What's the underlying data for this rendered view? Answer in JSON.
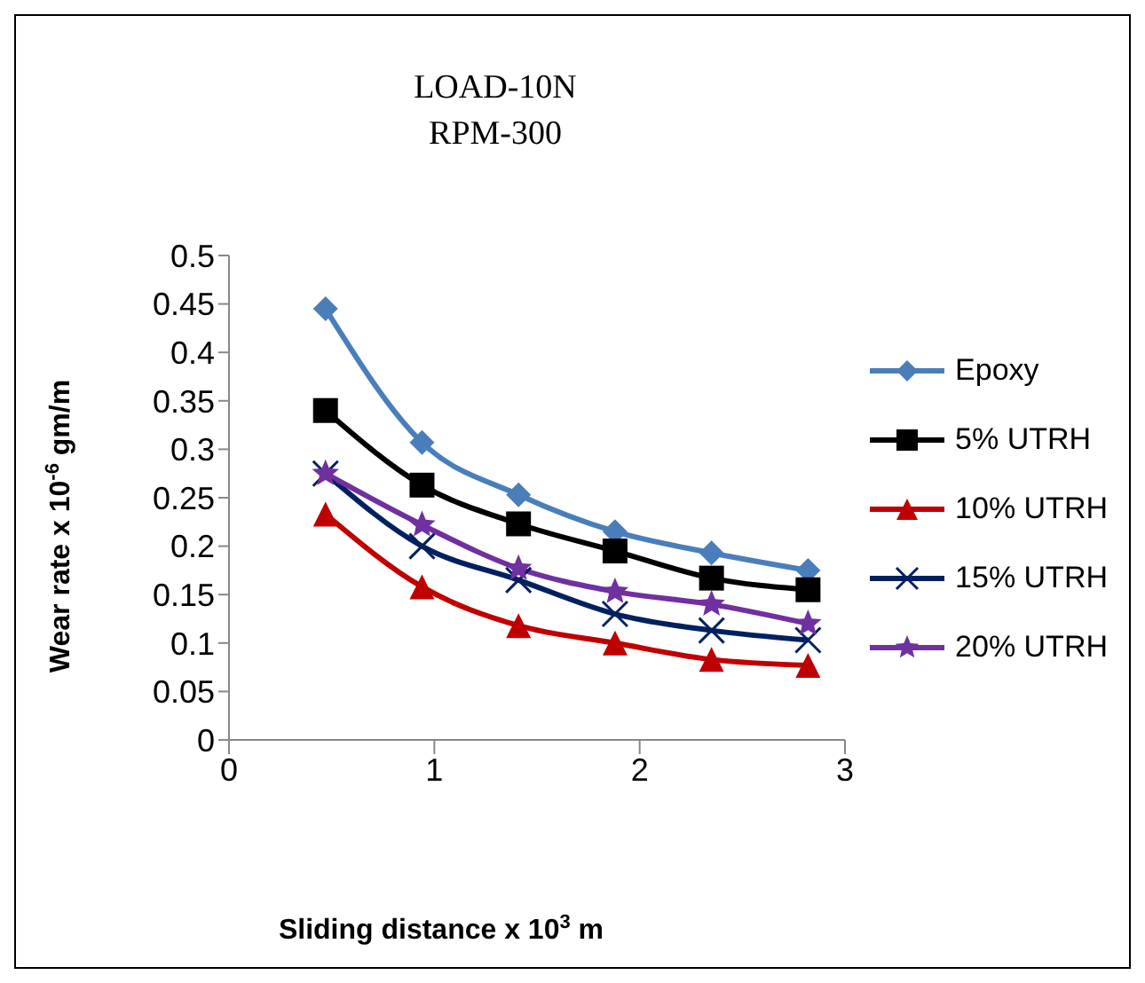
{
  "chart_data": {
    "type": "line",
    "title": "LOAD-10N\nRPM-300",
    "xlabel": "Sliding distance x 10$^{3}$ m",
    "ylabel": "Wear rate x 10$^{-6}$ gm/m",
    "x": [
      0.47,
      0.94,
      1.41,
      1.88,
      2.35,
      2.82
    ],
    "xlim": [
      0,
      3
    ],
    "xticks": [
      0,
      1,
      2,
      3
    ],
    "ylim": [
      0,
      0.5
    ],
    "yticks": [
      0,
      0.05,
      0.1,
      0.15,
      0.2,
      0.25,
      0.3,
      0.35,
      0.4,
      0.45,
      0.5
    ],
    "grid": false,
    "legend": "right",
    "series": [
      {
        "name": "Epoxy",
        "color": "#4a7ebb",
        "marker": "diamond",
        "values": [
          0.445,
          0.307,
          0.253,
          0.215,
          0.193,
          0.175
        ]
      },
      {
        "name": "5% UTRH",
        "color": "#000000",
        "marker": "square",
        "values": [
          0.34,
          0.263,
          0.223,
          0.195,
          0.167,
          0.155
        ]
      },
      {
        "name": "10% UTRH",
        "color": "#c00000",
        "marker": "triangle",
        "values": [
          0.233,
          0.158,
          0.118,
          0.1,
          0.083,
          0.077
        ]
      },
      {
        "name": "15% UTRH",
        "color": "#002060",
        "marker": "cross",
        "values": [
          0.275,
          0.2,
          0.165,
          0.13,
          0.113,
          0.103
        ]
      },
      {
        "name": "20% UTRH",
        "color": "#7030a0",
        "marker": "star",
        "values": [
          0.275,
          0.222,
          0.177,
          0.153,
          0.14,
          0.12
        ]
      }
    ]
  }
}
